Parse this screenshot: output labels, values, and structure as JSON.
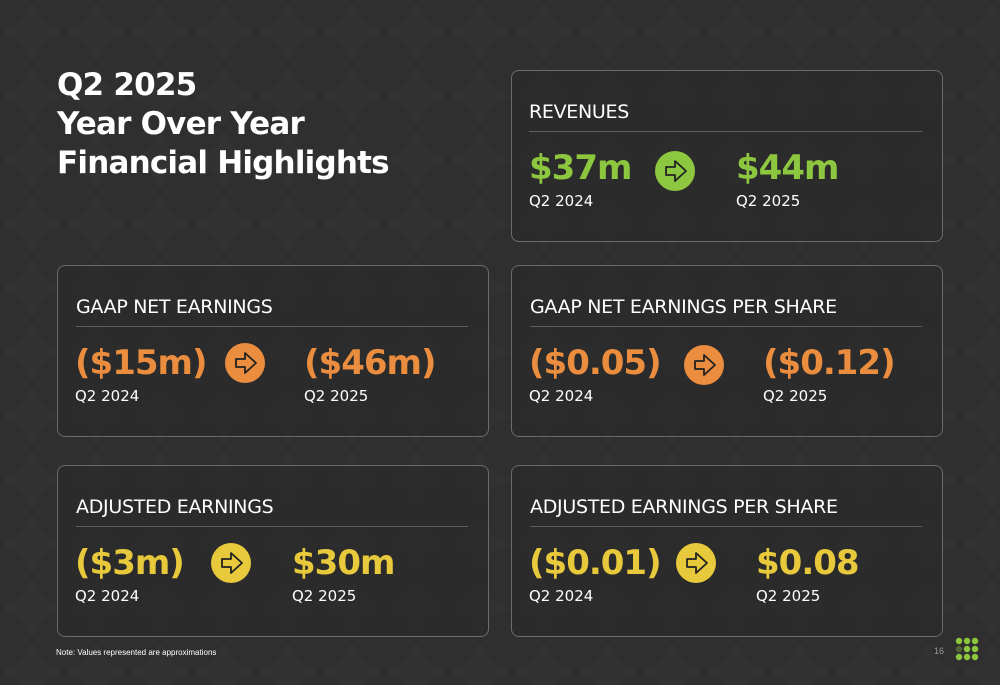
{
  "title": {
    "line1": "Q2 2025",
    "line2": "Year Over Year",
    "line3": "Financial Highlights"
  },
  "colors": {
    "background": "#2b2b2b",
    "green": "#8dc63f",
    "orange": "#eb8d3f",
    "yellow": "#e8c93c",
    "border": "#6b6b6b"
  },
  "cards": {
    "revenues": {
      "heading": "REVENUES",
      "prior_value": "$37m",
      "prior_period": "Q2 2024",
      "current_value": "$44m",
      "current_period": "Q2 2025",
      "arrow_icon": "arrow-right-icon"
    },
    "gaap_net_earnings": {
      "heading": "GAAP NET EARNINGS",
      "prior_value": "($15m)",
      "prior_period": "Q2 2024",
      "current_value": "($46m)",
      "current_period": "Q2 2025",
      "arrow_icon": "arrow-right-icon"
    },
    "gaap_eps": {
      "heading": "GAAP NET EARNINGS PER SHARE",
      "prior_value": "($0.05)",
      "prior_period": "Q2 2024",
      "current_value": "($0.12)",
      "current_period": "Q2 2025",
      "arrow_icon": "arrow-right-icon"
    },
    "adjusted_earnings": {
      "heading": "ADJUSTED EARNINGS",
      "prior_value": "($3m)",
      "prior_period": "Q2 2024",
      "current_value": "$30m",
      "current_period": "Q2 2025",
      "arrow_icon": "arrow-right-icon"
    },
    "adjusted_eps": {
      "heading": "ADJUSTED EARNINGS PER SHARE",
      "prior_value": "($0.01)",
      "prior_period": "Q2 2024",
      "current_value": "$0.08",
      "current_period": "Q2 2025",
      "arrow_icon": "arrow-right-icon"
    }
  },
  "footer": {
    "note": "Note: Values represented are approximations",
    "page_number": "16",
    "logo_icon": "dot-grid-logo-icon"
  }
}
